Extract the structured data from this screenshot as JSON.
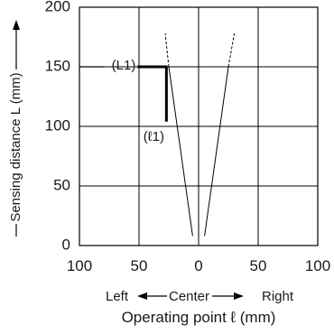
{
  "chart_data": {
    "type": "line",
    "ylabel": "Sensing distance L (mm)",
    "xlabel_direction": {
      "left": "Left",
      "center": "Center",
      "right": "Right"
    },
    "xlabel": "Operating point ℓ (mm)",
    "xlim": [
      -100,
      100
    ],
    "ylim": [
      0,
      200
    ],
    "x_ticks": [
      -100,
      -50,
      0,
      50,
      100
    ],
    "x_tick_labels": [
      "100",
      "50",
      "0",
      "50",
      "100"
    ],
    "y_ticks": [
      0,
      50,
      100,
      150,
      200
    ],
    "y_tick_labels": [
      "0",
      "50",
      "100",
      "150",
      "200"
    ],
    "grid": true,
    "series": [
      {
        "style": "solid",
        "x": [
          -5,
          -25
        ],
        "y": [
          8,
          150
        ]
      },
      {
        "style": "dashed",
        "x": [
          -25,
          -28
        ],
        "y": [
          150,
          178
        ]
      },
      {
        "style": "solid",
        "x": [
          5,
          25
        ],
        "y": [
          8,
          150
        ]
      },
      {
        "style": "dashed",
        "x": [
          25,
          30
        ],
        "y": [
          150,
          178
        ]
      }
    ],
    "annotations": [
      {
        "text": "(L1)",
        "x": -27,
        "y": 150,
        "marks": "L1 at 150 mm"
      },
      {
        "text": "(ℓ1)",
        "x": -27,
        "y": 100,
        "marks": "ℓ1 at about 25 mm left"
      }
    ]
  }
}
